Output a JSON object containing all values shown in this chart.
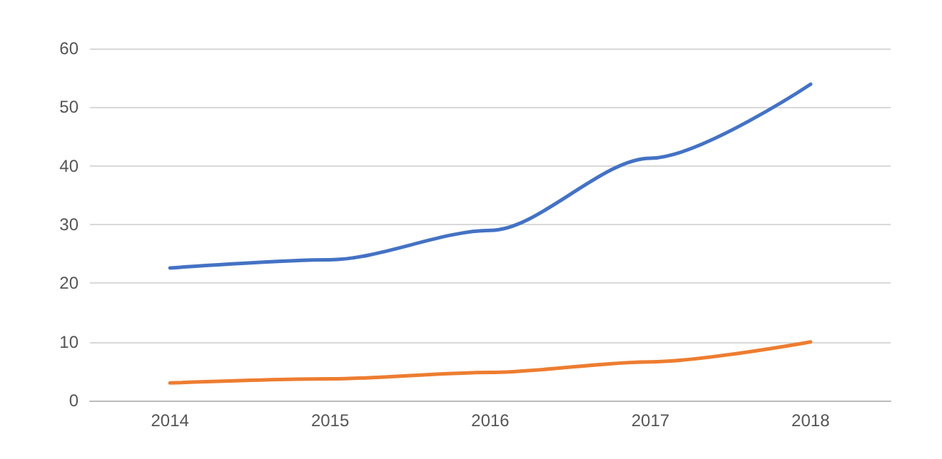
{
  "chart_data": {
    "type": "line",
    "categories": [
      "2014",
      "2015",
      "2016",
      "2017",
      "2018"
    ],
    "series": [
      {
        "color": "#4472c4",
        "values": [
          22.6,
          24.0,
          29.0,
          41.3,
          53.9
        ]
      },
      {
        "color": "#ed7d31",
        "values": [
          3.0,
          3.7,
          4.8,
          6.6,
          10.0
        ]
      }
    ],
    "ylim": [
      0,
      60
    ],
    "yticks": [
      0,
      10,
      20,
      30,
      40,
      50,
      60
    ],
    "grid": "y",
    "marker": "none",
    "line_style": "solid"
  }
}
